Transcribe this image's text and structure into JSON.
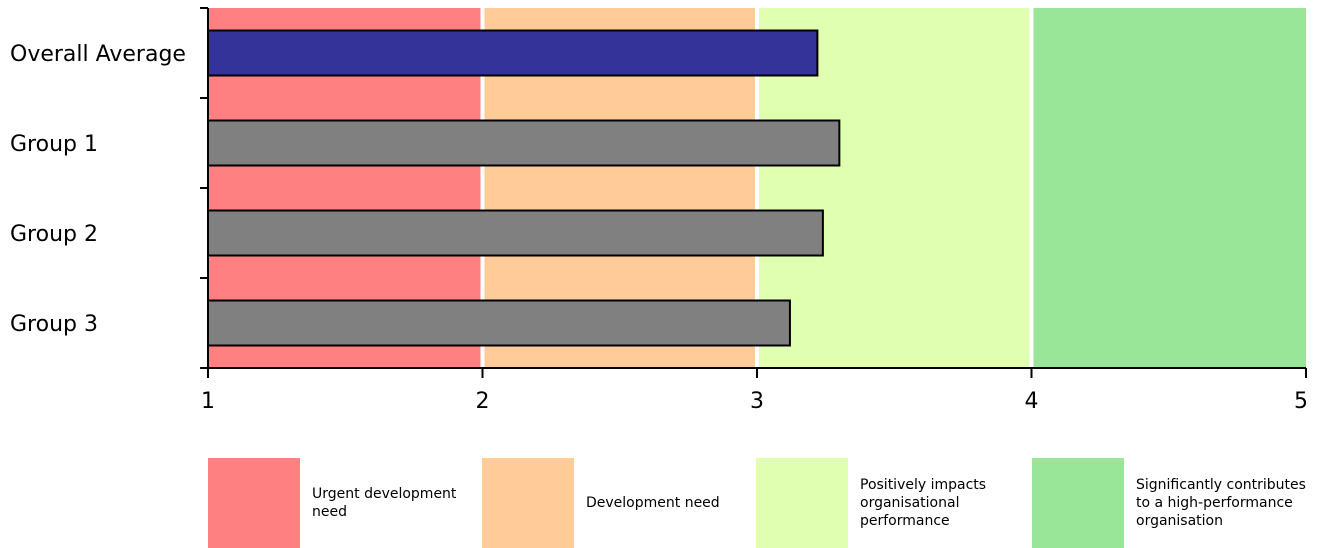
{
  "chart_data": {
    "type": "bar",
    "orientation": "horizontal",
    "categories": [
      "Overall Average",
      "Group 1",
      "Group 2",
      "Group 3"
    ],
    "values": [
      3.22,
      3.3,
      3.24,
      3.12
    ],
    "bar_colors": [
      "#333399",
      "#808080",
      "#808080",
      "#808080"
    ],
    "xlim": [
      1,
      5
    ],
    "xticks": [
      "1",
      "2",
      "3",
      "4",
      "5"
    ],
    "title": "",
    "xlabel": "",
    "ylabel": "",
    "bands": [
      {
        "from": 1,
        "to": 2,
        "color": "#ff8080",
        "label": "Urgent development need"
      },
      {
        "from": 2,
        "to": 3,
        "color": "#ffcc99",
        "label": "Development need"
      },
      {
        "from": 3,
        "to": 4,
        "color": "#e0ffb0",
        "label": "Positively impacts organisational performance"
      },
      {
        "from": 4,
        "to": 5,
        "color": "#99e699",
        "label": "Significantly contributes to a high-performance organisation"
      }
    ],
    "legend_position": "bottom"
  }
}
